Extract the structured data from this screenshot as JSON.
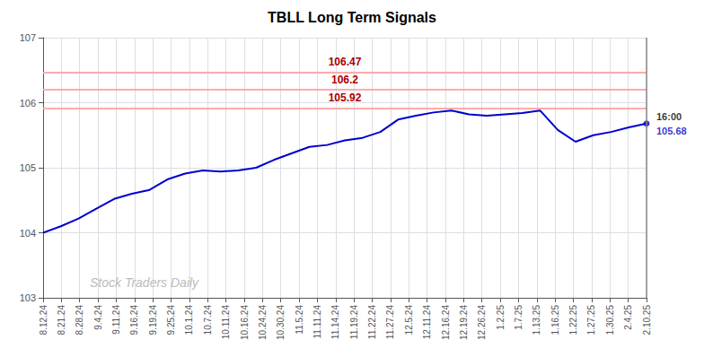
{
  "chart_data": {
    "type": "line",
    "title": "TBLL Long Term Signals",
    "color": "#0000cc",
    "x": [
      0,
      0.9705882352941176,
      1.9411764705882353,
      2.911764705882353,
      3.8823529411764706,
      4.852941176470588,
      5.823529411764706,
      6.794117647058823,
      7.764705882352941,
      8.735294117647058,
      9.705882352941176,
      10.676470588235293,
      11.647058823529411,
      12.617647058823529,
      13.588235294117647,
      14.558823529411764,
      15.529411764705882,
      16.5,
      17.470588235294116,
      18.441176470588236,
      19.41176470588235,
      20.38235294117647,
      21.352941176470587,
      22.323529411764707,
      23.294117647058822,
      24.264705882352942,
      25.235294117647058,
      26.205882352941178,
      27.176470588235293,
      28.147058823529413,
      29.11764705882353,
      30.08823529411765,
      31.058823529411764,
      32.029411764705884,
      33
    ],
    "values": [
      104.0,
      104.1,
      104.22,
      104.37,
      104.52,
      104.6,
      104.66,
      104.82,
      104.91,
      104.96,
      104.94,
      104.96,
      105.0,
      105.12,
      105.22,
      105.32,
      105.35,
      105.42,
      105.46,
      105.55,
      105.74,
      105.8,
      105.85,
      105.88,
      105.82,
      105.8,
      105.82,
      105.84,
      105.88,
      105.58,
      105.4,
      105.5,
      105.55,
      105.62,
      105.68
    ],
    "xlim": [
      0,
      33
    ],
    "xticks": [
      {
        "value": 0,
        "label": "8.12.24"
      },
      {
        "value": 1,
        "label": "8.21.24"
      },
      {
        "value": 2,
        "label": "8.28.24"
      },
      {
        "value": 3,
        "label": "9.4.24"
      },
      {
        "value": 4,
        "label": "9.11.24"
      },
      {
        "value": 5,
        "label": "9.16.24"
      },
      {
        "value": 6,
        "label": "9.19.24"
      },
      {
        "value": 7,
        "label": "9.25.24"
      },
      {
        "value": 8,
        "label": "10.1.24"
      },
      {
        "value": 9,
        "label": "10.7.24"
      },
      {
        "value": 10,
        "label": "10.11.24"
      },
      {
        "value": 11,
        "label": "10.16.24"
      },
      {
        "value": 12,
        "label": "10.24.24"
      },
      {
        "value": 13,
        "label": "10.30.24"
      },
      {
        "value": 14,
        "label": "11.5.24"
      },
      {
        "value": 15,
        "label": "11.11.24"
      },
      {
        "value": 16,
        "label": "11.14.24"
      },
      {
        "value": 17,
        "label": "11.19.24"
      },
      {
        "value": 18,
        "label": "11.22.24"
      },
      {
        "value": 19,
        "label": "11.27.24"
      },
      {
        "value": 20,
        "label": "12.5.24"
      },
      {
        "value": 21,
        "label": "12.11.24"
      },
      {
        "value": 22,
        "label": "12.16.24"
      },
      {
        "value": 23,
        "label": "12.19.24"
      },
      {
        "value": 24,
        "label": "12.26.24"
      },
      {
        "value": 25,
        "label": "1.2.25"
      },
      {
        "value": 26,
        "label": "1.7.25"
      },
      {
        "value": 27,
        "label": "1.13.25"
      },
      {
        "value": 28,
        "label": "1.16.25"
      },
      {
        "value": 29,
        "label": "1.22.25"
      },
      {
        "value": 30,
        "label": "1.27.25"
      },
      {
        "value": 31,
        "label": "1.30.25"
      },
      {
        "value": 32,
        "label": "2.4.25"
      },
      {
        "value": 33,
        "label": "2.10.25"
      }
    ],
    "ylim": [
      103,
      107
    ],
    "yticks": [
      103,
      104,
      105,
      106,
      107
    ],
    "grid": true,
    "hlines": [
      {
        "y": 106.47,
        "label": "106.47",
        "color": "#ffaaaa",
        "label_color": "#aa0000"
      },
      {
        "y": 106.2,
        "label": "106.2",
        "color": "#ffaaaa",
        "label_color": "#aa0000"
      },
      {
        "y": 105.92,
        "label": "105.92",
        "color": "#ffaaaa",
        "label_color": "#aa0000"
      }
    ],
    "vlines": [
      {
        "x": 33,
        "color": "#888888"
      }
    ],
    "annotations": [
      {
        "text": "16:00",
        "color": "#000000",
        "anchor": "last_point"
      },
      {
        "text": "105.68",
        "color": "#0000cc",
        "anchor": "last_point"
      },
      {
        "text": "Stock Traders Daily",
        "color": "#bbbbbb",
        "anchor": "watermark"
      }
    ]
  }
}
